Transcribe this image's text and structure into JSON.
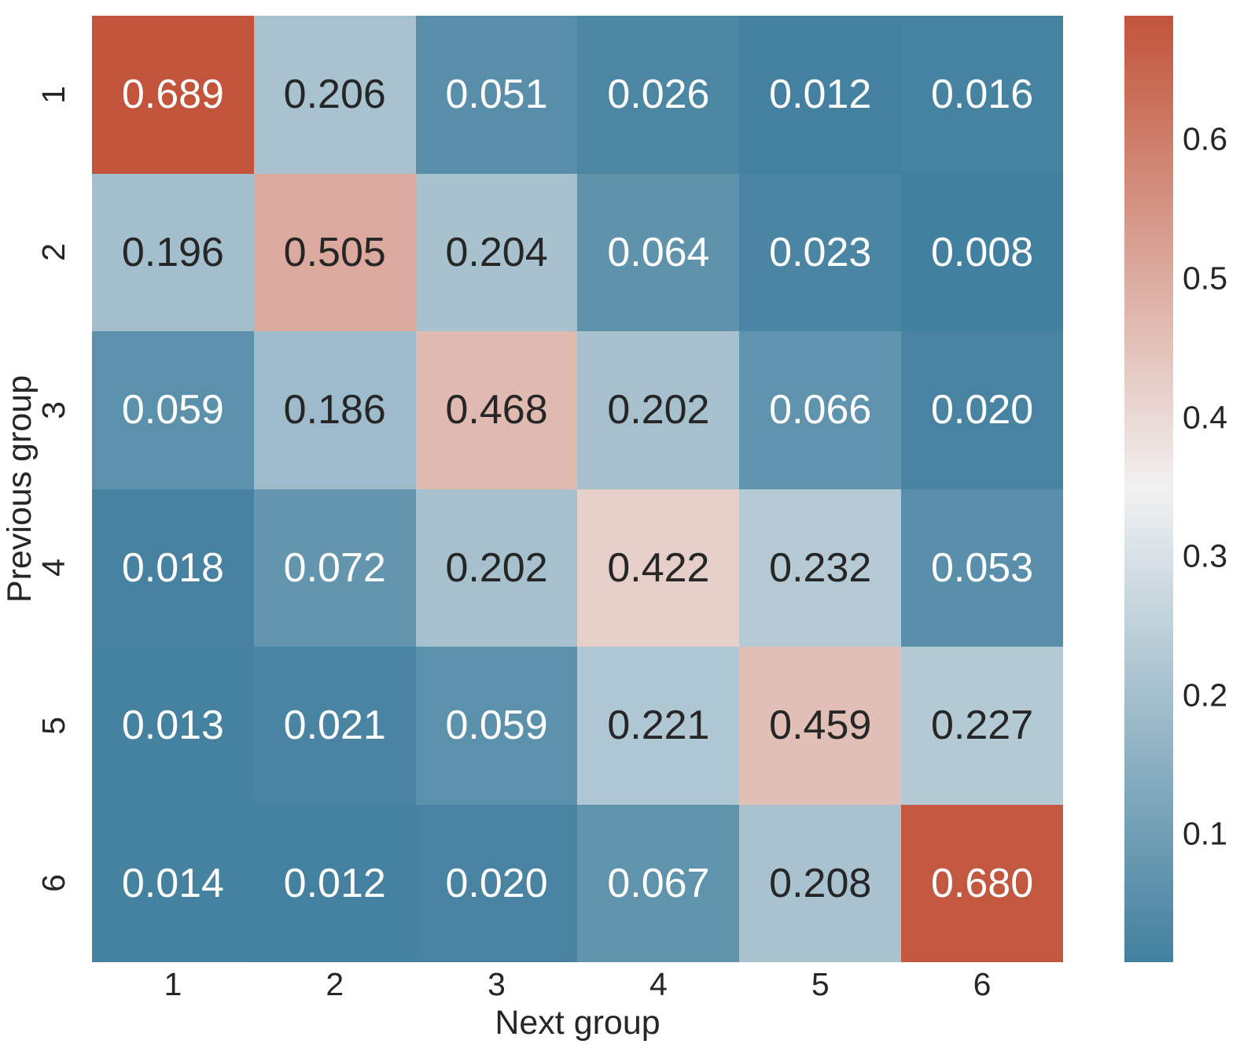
{
  "chart_data": {
    "type": "heatmap",
    "title": "",
    "xlabel": "Next group",
    "ylabel": "Previous group",
    "x_tick_labels": [
      "1",
      "2",
      "3",
      "4",
      "5",
      "6"
    ],
    "y_tick_labels": [
      "1",
      "2",
      "3",
      "4",
      "5",
      "6"
    ],
    "values": [
      [
        0.689,
        0.206,
        0.051,
        0.026,
        0.012,
        0.016
      ],
      [
        0.196,
        0.505,
        0.204,
        0.064,
        0.023,
        0.008
      ],
      [
        0.059,
        0.186,
        0.468,
        0.202,
        0.066,
        0.02
      ],
      [
        0.018,
        0.072,
        0.202,
        0.422,
        0.232,
        0.053
      ],
      [
        0.013,
        0.021,
        0.059,
        0.221,
        0.459,
        0.227
      ],
      [
        0.014,
        0.012,
        0.02,
        0.067,
        0.208,
        0.68
      ]
    ],
    "value_decimals": 3,
    "colorbar_tick_values": [
      0.6,
      0.5,
      0.4,
      0.3,
      0.2,
      0.1
    ],
    "colorbar_tick_decimals": 1,
    "colorbar_range": [
      0.008,
      0.689
    ],
    "legend_position": "right",
    "grid": false,
    "colors": {
      "low": "#42809f",
      "mid": "#f1f1f1",
      "high": "#c1543a",
      "annot_dark": "#262626",
      "annot_light": "#ffffff",
      "axis_text": "#262626"
    }
  }
}
